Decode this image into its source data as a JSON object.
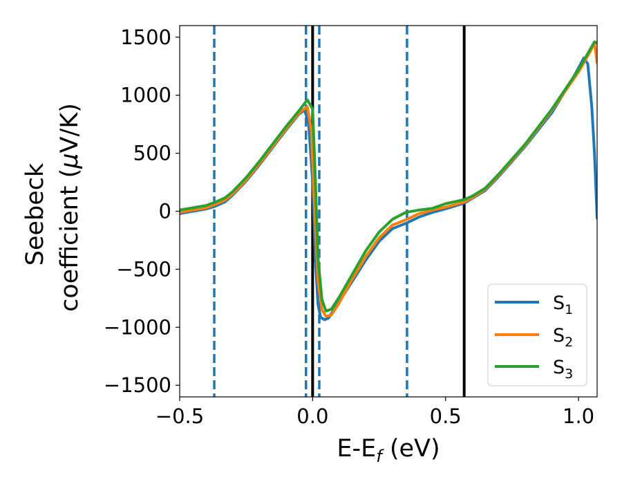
{
  "chart_data": {
    "type": "line",
    "title": "",
    "xlabel": "E-E",
    "xlabel_sub": "f",
    "xlabel_unit": " (eV)",
    "ylabel_line1": "Seebeck",
    "ylabel_line2": "coefficient  (",
    "ylabel_mu": "μ",
    "ylabel_unit": "V/K)",
    "xlim": [
      -0.5,
      1.07
    ],
    "ylim": [
      -1600,
      1600
    ],
    "xticks": [
      -0.5,
      0.0,
      0.5,
      1.0
    ],
    "xtick_labels": [
      "−0.5",
      "0.0",
      "0.5",
      "1.0"
    ],
    "yticks": [
      -1500,
      -1000,
      -500,
      0,
      500,
      1000,
      1500
    ],
    "ytick_labels": [
      "−1500",
      "−1000",
      "−500",
      "0",
      "500",
      "1000",
      "1500"
    ],
    "grid": false,
    "legend_position": "bottom-right",
    "dashed_vlines": {
      "x": [
        -0.37,
        -0.025,
        0.025,
        0.355
      ],
      "color": "#1f77b4"
    },
    "solid_vlines": {
      "x": [
        0.0,
        0.57
      ],
      "color": "#000000"
    },
    "series": [
      {
        "name": "S",
        "subscript": "1",
        "color": "#1f77b4",
        "points": [
          [
            -0.5,
            -20
          ],
          [
            -0.45,
            0
          ],
          [
            -0.4,
            20
          ],
          [
            -0.37,
            40
          ],
          [
            -0.33,
            80
          ],
          [
            -0.3,
            140
          ],
          [
            -0.25,
            260
          ],
          [
            -0.2,
            400
          ],
          [
            -0.15,
            550
          ],
          [
            -0.1,
            700
          ],
          [
            -0.05,
            840
          ],
          [
            -0.03,
            870
          ],
          [
            -0.015,
            760
          ],
          [
            0.0,
            250
          ],
          [
            0.01,
            -400
          ],
          [
            0.02,
            -800
          ],
          [
            0.03,
            -915
          ],
          [
            0.045,
            -935
          ],
          [
            0.06,
            -920
          ],
          [
            0.1,
            -780
          ],
          [
            0.15,
            -600
          ],
          [
            0.2,
            -420
          ],
          [
            0.25,
            -260
          ],
          [
            0.3,
            -150
          ],
          [
            0.355,
            -100
          ],
          [
            0.4,
            -50
          ],
          [
            0.45,
            -10
          ],
          [
            0.5,
            20
          ],
          [
            0.57,
            70
          ],
          [
            0.6,
            110
          ],
          [
            0.65,
            180
          ],
          [
            0.7,
            300
          ],
          [
            0.8,
            560
          ],
          [
            0.9,
            850
          ],
          [
            0.98,
            1150
          ],
          [
            1.02,
            1320
          ],
          [
            1.035,
            1270
          ],
          [
            1.05,
            900
          ],
          [
            1.06,
            500
          ],
          [
            1.07,
            -60
          ]
        ]
      },
      {
        "name": "S",
        "subscript": "2",
        "color": "#ff7f0e",
        "points": [
          [
            -0.5,
            -10
          ],
          [
            -0.45,
            10
          ],
          [
            -0.4,
            30
          ],
          [
            -0.37,
            55
          ],
          [
            -0.33,
            95
          ],
          [
            -0.3,
            150
          ],
          [
            -0.25,
            270
          ],
          [
            -0.2,
            410
          ],
          [
            -0.15,
            560
          ],
          [
            -0.1,
            710
          ],
          [
            -0.05,
            850
          ],
          [
            -0.02,
            900
          ],
          [
            -0.005,
            700
          ],
          [
            0.01,
            -100
          ],
          [
            0.02,
            -600
          ],
          [
            0.035,
            -850
          ],
          [
            0.05,
            -905
          ],
          [
            0.07,
            -895
          ],
          [
            0.1,
            -790
          ],
          [
            0.15,
            -580
          ],
          [
            0.2,
            -390
          ],
          [
            0.25,
            -230
          ],
          [
            0.3,
            -120
          ],
          [
            0.355,
            -70
          ],
          [
            0.4,
            -20
          ],
          [
            0.45,
            10
          ],
          [
            0.5,
            35
          ],
          [
            0.57,
            80
          ],
          [
            0.6,
            115
          ],
          [
            0.65,
            190
          ],
          [
            0.7,
            310
          ],
          [
            0.8,
            570
          ],
          [
            0.9,
            870
          ],
          [
            1.0,
            1200
          ],
          [
            1.04,
            1360
          ],
          [
            1.06,
            1450
          ],
          [
            1.07,
            1280
          ]
        ]
      },
      {
        "name": "S",
        "subscript": "3",
        "color": "#2ca02c",
        "points": [
          [
            -0.5,
            10
          ],
          [
            -0.45,
            30
          ],
          [
            -0.4,
            50
          ],
          [
            -0.37,
            75
          ],
          [
            -0.33,
            115
          ],
          [
            -0.3,
            170
          ],
          [
            -0.25,
            290
          ],
          [
            -0.2,
            430
          ],
          [
            -0.15,
            580
          ],
          [
            -0.1,
            730
          ],
          [
            -0.05,
            870
          ],
          [
            -0.02,
            960
          ],
          [
            0.0,
            880
          ],
          [
            0.01,
            300
          ],
          [
            0.02,
            -400
          ],
          [
            0.035,
            -760
          ],
          [
            0.05,
            -860
          ],
          [
            0.07,
            -845
          ],
          [
            0.1,
            -740
          ],
          [
            0.15,
            -540
          ],
          [
            0.2,
            -340
          ],
          [
            0.25,
            -180
          ],
          [
            0.3,
            -70
          ],
          [
            0.35,
            -10
          ],
          [
            0.4,
            10
          ],
          [
            0.45,
            25
          ],
          [
            0.5,
            65
          ],
          [
            0.57,
            100
          ],
          [
            0.6,
            130
          ],
          [
            0.65,
            200
          ],
          [
            0.7,
            320
          ],
          [
            0.8,
            580
          ],
          [
            0.9,
            880
          ],
          [
            1.0,
            1220
          ],
          [
            1.04,
            1380
          ],
          [
            1.06,
            1460
          ],
          [
            1.07,
            1450
          ]
        ]
      }
    ]
  }
}
